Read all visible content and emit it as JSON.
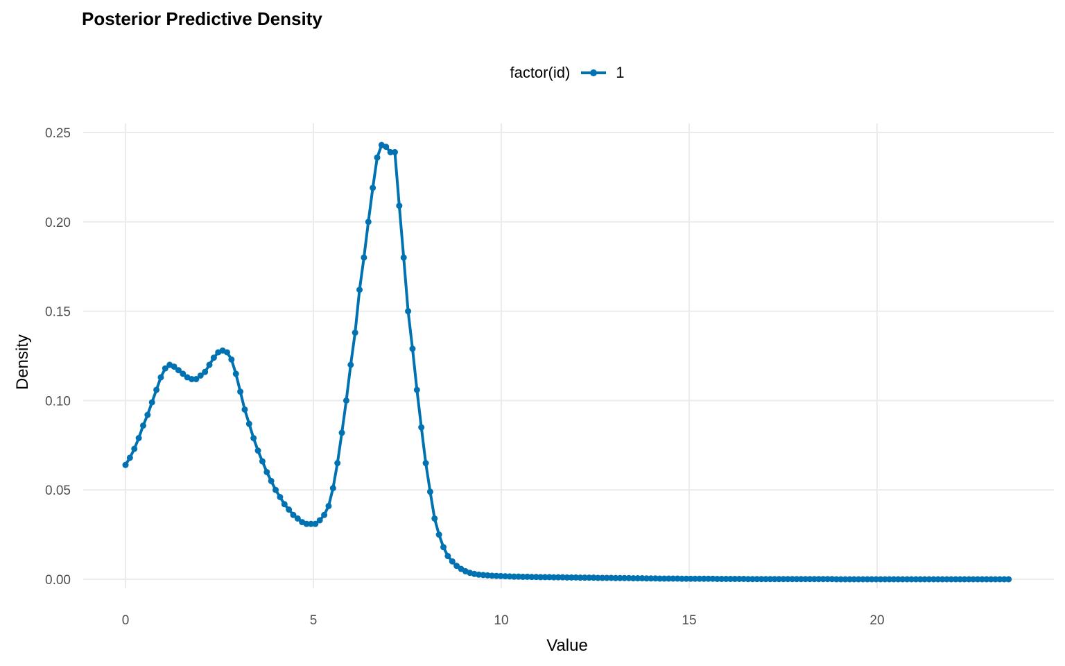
{
  "chart_data": {
    "type": "line",
    "title": "Posterior Predictive Density",
    "xlabel": "Value",
    "ylabel": "Density",
    "legend": {
      "title": "factor(id)",
      "entries": [
        "1"
      ],
      "placement": "top"
    },
    "xlim": [
      0,
      23.5
    ],
    "ylim": [
      0,
      0.25
    ],
    "xticks": [
      0,
      5,
      10,
      15,
      20
    ],
    "xtick_labels": [
      "0",
      "5",
      "10",
      "15",
      "20"
    ],
    "yticks": [
      0,
      0.05,
      0.1,
      0.15,
      0.2,
      0.25
    ],
    "ytick_labels": [
      "0.00",
      "0.05",
      "0.10",
      "0.15",
      "0.20",
      "0.25"
    ],
    "grid": true,
    "series": [
      {
        "name": "1",
        "color": "#0072B2",
        "x_start": 0,
        "x_step": 0.1175,
        "values": [
          0.064,
          0.068,
          0.073,
          0.079,
          0.086,
          0.092,
          0.099,
          0.106,
          0.113,
          0.118,
          0.12,
          0.119,
          0.117,
          0.115,
          0.113,
          0.112,
          0.112,
          0.114,
          0.116,
          0.12,
          0.124,
          0.127,
          0.128,
          0.127,
          0.123,
          0.115,
          0.105,
          0.095,
          0.087,
          0.079,
          0.072,
          0.066,
          0.06,
          0.055,
          0.05,
          0.046,
          0.042,
          0.039,
          0.036,
          0.034,
          0.032,
          0.031,
          0.031,
          0.031,
          0.033,
          0.036,
          0.041,
          0.051,
          0.065,
          0.082,
          0.1,
          0.12,
          0.138,
          0.162,
          0.18,
          0.2,
          0.219,
          0.236,
          0.243,
          0.242,
          0.239,
          0.239,
          0.209,
          0.18,
          0.15,
          0.129,
          0.106,
          0.085,
          0.065,
          0.049,
          0.034,
          0.025,
          0.018,
          0.013,
          0.01,
          0.0075,
          0.0058,
          0.0045,
          0.0036,
          0.003,
          0.0026,
          0.0024,
          0.0022,
          0.002,
          0.0019,
          0.0018,
          0.0017,
          0.0016,
          0.0015,
          0.0015,
          0.0014,
          0.0014,
          0.0013,
          0.0013,
          0.0012,
          0.0012,
          0.0012,
          0.0011,
          0.0011,
          0.0011,
          0.001,
          0.001,
          0.001,
          0.0009,
          0.0009,
          0.0009,
          0.0009,
          0.0008,
          0.0008,
          0.0008,
          0.0008,
          0.0007,
          0.0007,
          0.0007,
          0.0007,
          0.0006,
          0.0006,
          0.0006,
          0.0005,
          0.0005,
          0.0005,
          0.0004,
          0.0004,
          0.0004,
          0.0004,
          0.0004,
          0.0003,
          0.0003,
          0.0003,
          0.0003,
          0.0003,
          0.0003,
          0.0003,
          0.0003,
          0.0002,
          0.0002,
          0.0002,
          0.0002,
          0.0002,
          0.0002,
          0.0002,
          0.0001,
          0.0001,
          0.0001,
          0.0001,
          0.0001,
          0.0001,
          0.0001,
          0.0001,
          0.0001,
          0.0001,
          0.0001,
          0.0001,
          0.0001,
          0.0001,
          0.0001,
          0.0001,
          0.0001,
          0.0001,
          0.0001,
          0.0001,
          0,
          0,
          0,
          0,
          0,
          0,
          0,
          0,
          0,
          0,
          0,
          0,
          0,
          0,
          0,
          0,
          0,
          0,
          0,
          0,
          0,
          0,
          0,
          0,
          0,
          0,
          0,
          0,
          0,
          0,
          0,
          0,
          0,
          0,
          0,
          0,
          0,
          0,
          0,
          0
        ]
      }
    ]
  }
}
